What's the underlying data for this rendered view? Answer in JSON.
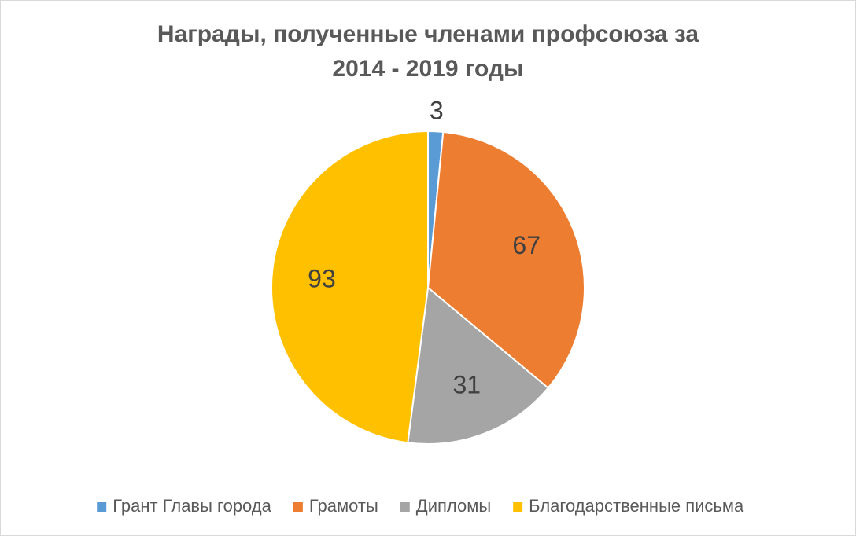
{
  "chart_data": {
    "type": "pie",
    "title": [
      "Награды, полученные членами профсоюза за",
      "2014 - 2019 годы"
    ],
    "categories": [
      "Грант Главы города",
      "Грамоты",
      "Дипломы",
      "Благодарственные письма"
    ],
    "values": [
      3,
      67,
      31,
      93
    ],
    "colors": [
      "#5b9bd5",
      "#ed7d31",
      "#a5a5a5",
      "#ffc000"
    ],
    "legend": "bottom"
  }
}
